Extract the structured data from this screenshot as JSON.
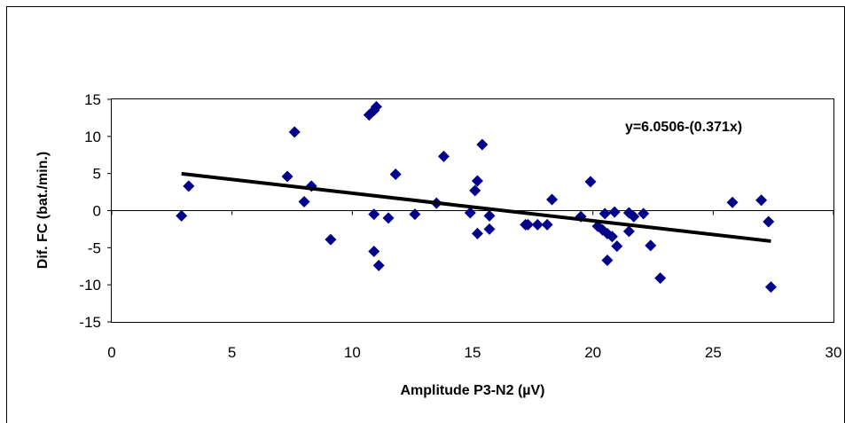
{
  "chart_data": {
    "type": "scatter",
    "title": "",
    "xlabel": "Amplitude P3-N2 (µV)",
    "ylabel": "Dif. FC (bat./min.)",
    "xlim": [
      0,
      30
    ],
    "ylim": [
      -15,
      15
    ],
    "xticks": [
      0,
      5,
      10,
      15,
      20,
      25,
      30
    ],
    "yticks": [
      -15,
      -10,
      -5,
      0,
      5,
      10,
      15
    ],
    "grid": false,
    "annotation": "y=6.0506-(0.371x)",
    "marker_color": "#00008B",
    "line_color": "#000000",
    "trendline": {
      "intercept": 6.0506,
      "slope": -0.371,
      "x_start": 2.9,
      "x_end": 27.4
    },
    "series": [
      {
        "points": [
          [
            2.9,
            -0.7
          ],
          [
            3.2,
            3.3
          ],
          [
            7.3,
            4.6
          ],
          [
            7.6,
            10.6
          ],
          [
            8.0,
            1.2
          ],
          [
            8.3,
            3.3
          ],
          [
            9.1,
            -3.9
          ],
          [
            10.7,
            12.9
          ],
          [
            10.9,
            13.5
          ],
          [
            11.0,
            14.0
          ],
          [
            10.9,
            -0.5
          ],
          [
            10.9,
            -5.5
          ],
          [
            11.1,
            -7.4
          ],
          [
            11.5,
            -1.0
          ],
          [
            11.8,
            4.9
          ],
          [
            12.6,
            -0.5
          ],
          [
            13.5,
            1.0
          ],
          [
            13.8,
            7.3
          ],
          [
            14.9,
            -0.3
          ],
          [
            15.1,
            2.7
          ],
          [
            15.2,
            4.0
          ],
          [
            15.2,
            -3.1
          ],
          [
            15.4,
            8.9
          ],
          [
            15.7,
            -0.7
          ],
          [
            15.7,
            -2.5
          ],
          [
            17.2,
            -1.9
          ],
          [
            17.3,
            -1.9
          ],
          [
            17.7,
            -1.9
          ],
          [
            18.1,
            -1.9
          ],
          [
            18.3,
            1.5
          ],
          [
            19.5,
            -0.8
          ],
          [
            19.9,
            3.9
          ],
          [
            20.2,
            -2.1
          ],
          [
            20.4,
            -2.6
          ],
          [
            20.5,
            -0.4
          ],
          [
            20.6,
            -3.1
          ],
          [
            20.6,
            -6.7
          ],
          [
            20.8,
            -3.5
          ],
          [
            20.9,
            -0.2
          ],
          [
            21.0,
            -4.8
          ],
          [
            21.5,
            -0.3
          ],
          [
            21.5,
            -2.8
          ],
          [
            21.7,
            -0.8
          ],
          [
            22.1,
            -0.4
          ],
          [
            22.4,
            -4.7
          ],
          [
            22.8,
            -9.1
          ],
          [
            25.8,
            1.1
          ],
          [
            27.0,
            1.4
          ],
          [
            27.3,
            -1.5
          ],
          [
            27.4,
            -10.3
          ]
        ]
      }
    ]
  }
}
